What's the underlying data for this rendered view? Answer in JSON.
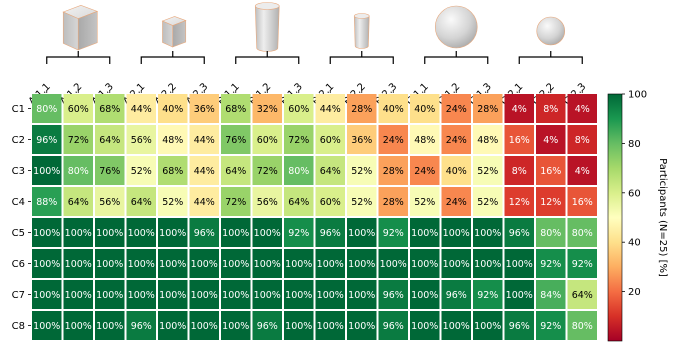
{
  "chart_data": {
    "type": "heatmap",
    "x_labels": [
      "A.1.1",
      "A.1.2",
      "A.1.3",
      "A.2.1",
      "A.2.2",
      "A.2.3",
      "B.1.1",
      "B.1.2",
      "B.1.3",
      "B.2.1",
      "B.2.2",
      "B.2.3",
      "C.1.1",
      "C.1.2",
      "C.1.3",
      "C.2.1",
      "C.2.2",
      "C.2.3"
    ],
    "y_labels": [
      "C1",
      "C2",
      "C3",
      "C4",
      "C5",
      "C6",
      "C7",
      "C8"
    ],
    "values": [
      [
        80,
        60,
        68,
        44,
        40,
        36,
        68,
        32,
        60,
        44,
        28,
        40,
        40,
        24,
        28,
        4,
        8,
        4
      ],
      [
        96,
        72,
        64,
        56,
        48,
        44,
        76,
        60,
        72,
        60,
        36,
        24,
        48,
        24,
        48,
        16,
        4,
        8
      ],
      [
        100,
        80,
        76,
        52,
        68,
        44,
        64,
        72,
        80,
        64,
        52,
        28,
        24,
        40,
        52,
        8,
        16,
        4
      ],
      [
        88,
        64,
        56,
        64,
        52,
        44,
        72,
        56,
        64,
        60,
        52,
        28,
        52,
        24,
        52,
        12,
        12,
        16
      ],
      [
        100,
        100,
        100,
        100,
        100,
        96,
        100,
        100,
        92,
        96,
        100,
        92,
        100,
        100,
        100,
        96,
        80,
        80
      ],
      [
        100,
        100,
        100,
        100,
        100,
        100,
        100,
        100,
        100,
        100,
        100,
        100,
        100,
        100,
        100,
        100,
        92,
        92
      ],
      [
        100,
        100,
        100,
        100,
        100,
        100,
        100,
        100,
        100,
        100,
        100,
        96,
        100,
        96,
        92,
        100,
        84,
        64
      ],
      [
        100,
        100,
        100,
        96,
        100,
        100,
        100,
        96,
        100,
        100,
        100,
        96,
        100,
        100,
        100,
        96,
        92,
        80
      ]
    ],
    "value_suffix": "%",
    "colorbar": {
      "label": "Participants (N=25) [%]",
      "range": [
        0,
        100
      ],
      "ticks": [
        20,
        40,
        60,
        80,
        100
      ],
      "colormap": "RdYlGn"
    },
    "column_groups": [
      {
        "shape": "cube",
        "size": "large",
        "columns": [
          "A.1.1",
          "A.1.2",
          "A.1.3"
        ]
      },
      {
        "shape": "cube",
        "size": "small",
        "columns": [
          "A.2.1",
          "A.2.2",
          "A.2.3"
        ]
      },
      {
        "shape": "cylinder",
        "size": "large",
        "columns": [
          "B.1.1",
          "B.1.2",
          "B.1.3"
        ]
      },
      {
        "shape": "cylinder",
        "size": "small",
        "columns": [
          "B.2.1",
          "B.2.2",
          "B.2.3"
        ]
      },
      {
        "shape": "sphere",
        "size": "large",
        "columns": [
          "C.1.1",
          "C.1.2",
          "C.1.3"
        ]
      },
      {
        "shape": "sphere",
        "size": "small",
        "columns": [
          "C.2.1",
          "C.2.2",
          "C.2.3"
        ]
      }
    ]
  }
}
